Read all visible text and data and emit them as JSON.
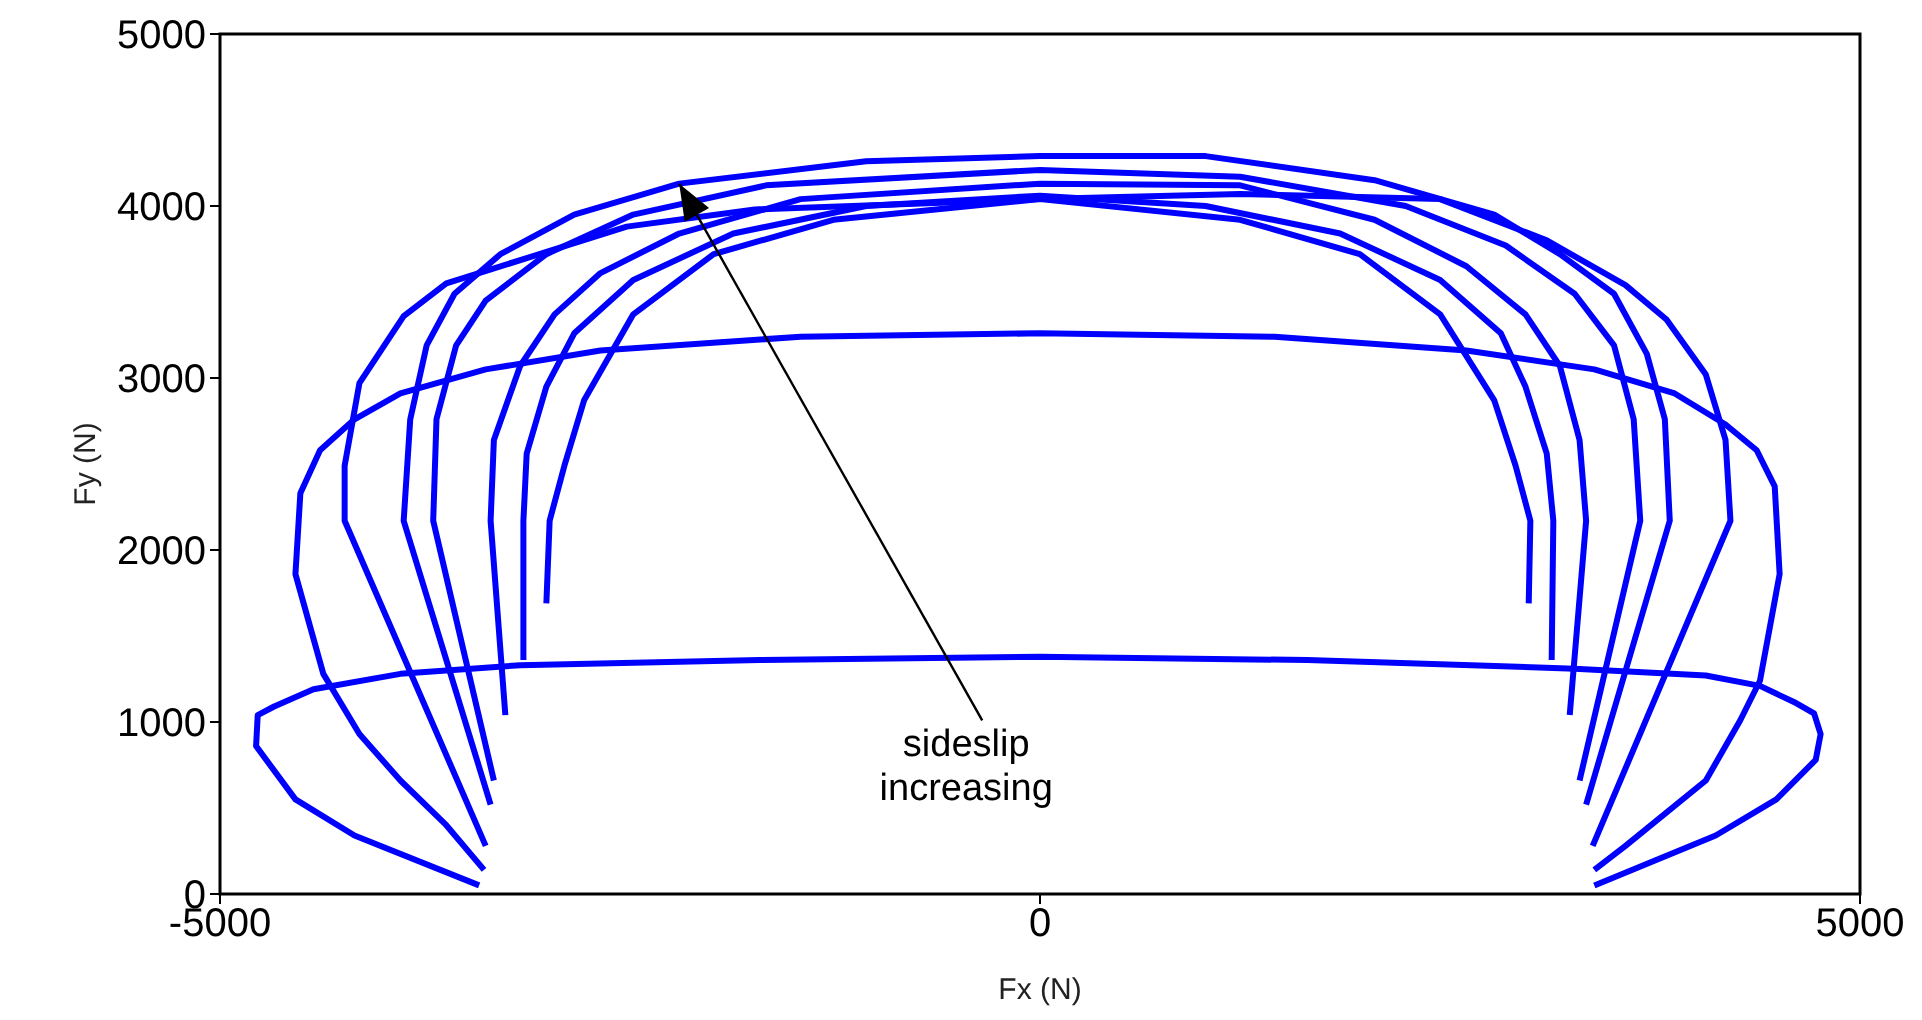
{
  "chart_data": {
    "type": "line",
    "xlabel": "Fx (N)",
    "ylabel": "Fy (N)",
    "xlim": [
      -5000,
      5000
    ],
    "xticks": [
      -5000,
      0,
      5000
    ],
    "ylim": [
      0,
      5000
    ],
    "yticks": [
      0,
      1000,
      2000,
      3000,
      4000,
      5000
    ],
    "marker": "none",
    "line_style": "solid",
    "annotations": [
      {
        "text": "sideslip increasing",
        "x": -2200,
        "y": 4130
      }
    ],
    "series": [
      {
        "color": "#0000ff",
        "x": [
          -3420,
          -4180,
          -4540,
          -4780,
          -4770,
          -4670,
          -4430,
          -3900,
          -3170,
          -1710,
          0,
          1630,
          3260,
          4060,
          4390,
          4610,
          4720,
          4760,
          4730,
          4490,
          4120,
          3380
        ],
        "values": [
          50,
          340,
          550,
          860,
          1040,
          1090,
          1190,
          1280,
          1330,
          1360,
          1380,
          1360,
          1310,
          1270,
          1210,
          1110,
          1050,
          930,
          780,
          550,
          340,
          50
        ]
      },
      {
        "color": "#0000ff",
        "x": [
          -3390,
          -3620,
          -3900,
          -4150,
          -4370,
          -4540,
          -4510,
          -4390,
          -4180,
          -3900,
          -3380,
          -2680,
          -1460,
          0,
          1430,
          2600,
          3380,
          3870,
          4180,
          4370,
          4480,
          4510,
          4390,
          4270,
          4060,
          3570,
          3380
        ],
        "values": [
          140,
          400,
          660,
          930,
          1280,
          1860,
          2330,
          2580,
          2760,
          2910,
          3050,
          3160,
          3240,
          3260,
          3240,
          3160,
          3050,
          2910,
          2730,
          2580,
          2370,
          1860,
          1240,
          1010,
          660,
          280,
          140
        ]
      },
      {
        "color": "#0000ff",
        "x": [
          -3380,
          -4240,
          -4240,
          -4150,
          -3880,
          -3620,
          -2520,
          -1740,
          0,
          1220,
          2440,
          3090,
          3570,
          3820,
          4060,
          4180,
          4210,
          3370
        ],
        "values": [
          280,
          2170,
          2490,
          2970,
          3360,
          3550,
          3880,
          3980,
          4040,
          4070,
          4040,
          3800,
          3540,
          3340,
          3020,
          2640,
          2170,
          280
        ]
      },
      {
        "color": "#0000ff",
        "x": [
          -3350,
          -3880,
          -3840,
          -3740,
          -3570,
          -3290,
          -2840,
          -2200,
          -1060,
          0,
          1010,
          2040,
          2770,
          3170,
          3500,
          3700,
          3810,
          3840,
          3330
        ],
        "values": [
          520,
          2170,
          2760,
          3190,
          3490,
          3720,
          3950,
          4130,
          4260,
          4290,
          4290,
          4150,
          3950,
          3720,
          3490,
          3140,
          2760,
          2170,
          520
        ]
      },
      {
        "color": "#0000ff",
        "x": [
          -3330,
          -3700,
          -3680,
          -3560,
          -3380,
          -3010,
          -2480,
          -1670,
          0,
          1220,
          2230,
          2840,
          3260,
          3500,
          3620,
          3660,
          3290
        ],
        "values": [
          660,
          2170,
          2760,
          3190,
          3450,
          3720,
          3950,
          4120,
          4210,
          4170,
          4000,
          3770,
          3490,
          3190,
          2760,
          2170,
          660
        ]
      },
      {
        "color": "#0000ff",
        "x": [
          -3260,
          -3350,
          -3330,
          -3170,
          -2960,
          -2680,
          -2200,
          -1460,
          0,
          1220,
          2040,
          2600,
          2960,
          3170,
          3290,
          3330,
          3230
        ],
        "values": [
          1040,
          2170,
          2640,
          3070,
          3370,
          3610,
          3840,
          4040,
          4130,
          4120,
          3920,
          3650,
          3370,
          3070,
          2640,
          2170,
          1040
        ]
      },
      {
        "color": "#0000ff",
        "x": [
          -3150,
          -3150,
          -3130,
          -3010,
          -2840,
          -2480,
          -1870,
          -1060,
          0,
          1010,
          1830,
          2440,
          2810,
          2960,
          3090,
          3130,
          3120
        ],
        "values": [
          1360,
          2170,
          2560,
          2950,
          3260,
          3570,
          3840,
          4000,
          4060,
          4000,
          3840,
          3570,
          3260,
          2950,
          2560,
          2170,
          1360
        ]
      },
      {
        "color": "#0000ff",
        "x": [
          -3010,
          -2990,
          -2900,
          -2780,
          -2480,
          -1990,
          -1260,
          0,
          1220,
          1950,
          2440,
          2770,
          2900,
          2990,
          2980
        ],
        "values": [
          1690,
          2170,
          2490,
          2870,
          3370,
          3720,
          3920,
          4040,
          3920,
          3720,
          3370,
          2870,
          2490,
          2170,
          1690
        ]
      }
    ]
  }
}
